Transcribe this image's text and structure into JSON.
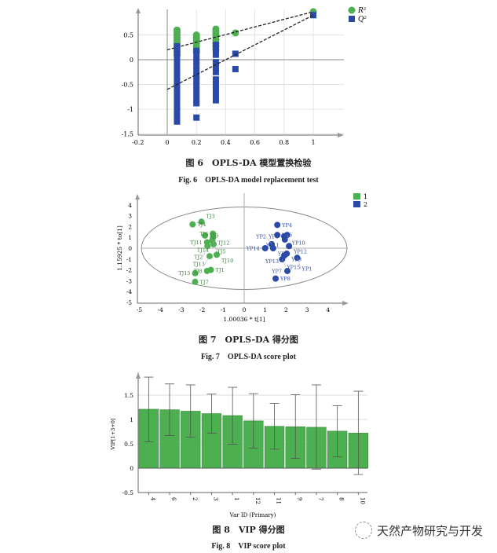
{
  "fig6": {
    "caption_cn": "图 6　OPLS-DA 模型置换检验",
    "caption_en": "Fig. 6　OPLS-DA model replacement test",
    "chart_data": {
      "type": "scatter",
      "title": "",
      "xlabel": "",
      "ylabel": "",
      "xlim": [
        -0.2,
        1.15
      ],
      "ylim": [
        -1.5,
        1.0
      ],
      "xticks": [
        "-0.2",
        "0",
        "0.2",
        "0.4",
        "0.6",
        "0.8",
        "1"
      ],
      "yticks": [
        "-1.5",
        "-1",
        "-0.5",
        "0",
        "0.5"
      ],
      "legend": [
        "R²",
        "Q²"
      ],
      "legend_position": "top-right",
      "series": [
        {
          "name": "R²",
          "color": "#4caf50",
          "marker": "circle",
          "points": [
            [
              0.067,
              0.1
            ],
            [
              0.067,
              0.15
            ],
            [
              0.067,
              0.2
            ],
            [
              0.067,
              0.25
            ],
            [
              0.067,
              0.3
            ],
            [
              0.067,
              0.35
            ],
            [
              0.067,
              0.4
            ],
            [
              0.067,
              0.45
            ],
            [
              0.067,
              0.5
            ],
            [
              0.067,
              0.55
            ],
            [
              0.067,
              0.6
            ],
            [
              0.2,
              0.15
            ],
            [
              0.2,
              0.2
            ],
            [
              0.2,
              0.27
            ],
            [
              0.2,
              0.33
            ],
            [
              0.2,
              0.4
            ],
            [
              0.2,
              0.45
            ],
            [
              0.2,
              0.5
            ],
            [
              0.333,
              0.2
            ],
            [
              0.333,
              0.27
            ],
            [
              0.333,
              0.33
            ],
            [
              0.333,
              0.4
            ],
            [
              0.333,
              0.47
            ],
            [
              0.333,
              0.52
            ],
            [
              0.333,
              0.57
            ],
            [
              0.333,
              0.62
            ],
            [
              0.467,
              0.54
            ],
            [
              1,
              0.97
            ]
          ],
          "regression": [
            [
              0,
              0.2
            ],
            [
              1,
              0.97
            ]
          ]
        },
        {
          "name": "Q²",
          "color": "#2b4aa8",
          "marker": "square",
          "points": [
            [
              0.067,
              0.27
            ],
            [
              0.067,
              0.15
            ],
            [
              0.067,
              0.05
            ],
            [
              0.067,
              -0.05
            ],
            [
              0.067,
              -0.15
            ],
            [
              0.067,
              -0.25
            ],
            [
              0.067,
              -0.35
            ],
            [
              0.067,
              -0.45
            ],
            [
              0.067,
              -0.55
            ],
            [
              0.067,
              -0.65
            ],
            [
              0.067,
              -0.75
            ],
            [
              0.067,
              -0.85
            ],
            [
              0.067,
              -0.95
            ],
            [
              0.067,
              -1.05
            ],
            [
              0.067,
              -1.15
            ],
            [
              0.067,
              -1.25
            ],
            [
              0.2,
              0.18
            ],
            [
              0.2,
              0.08
            ],
            [
              0.2,
              -0.02
            ],
            [
              0.2,
              -0.12
            ],
            [
              0.2,
              -0.22
            ],
            [
              0.2,
              -0.32
            ],
            [
              0.2,
              -0.42
            ],
            [
              0.2,
              -0.52
            ],
            [
              0.2,
              -0.62
            ],
            [
              0.2,
              -0.72
            ],
            [
              0.2,
              -0.82
            ],
            [
              0.2,
              -0.88
            ],
            [
              0.2,
              -1.17
            ],
            [
              0.333,
              0.3
            ],
            [
              0.333,
              0.2
            ],
            [
              0.333,
              0.1
            ],
            [
              0.333,
              -0.05
            ],
            [
              0.333,
              -0.15
            ],
            [
              0.333,
              -0.25
            ],
            [
              0.333,
              -0.4
            ],
            [
              0.333,
              -0.5
            ],
            [
              0.333,
              -0.6
            ],
            [
              0.333,
              -0.7
            ],
            [
              0.333,
              -0.82
            ],
            [
              0.467,
              0.12
            ],
            [
              0.467,
              -0.19
            ],
            [
              1,
              0.9
            ]
          ],
          "regression": [
            [
              0,
              -0.6
            ],
            [
              1,
              0.9
            ]
          ]
        }
      ]
    }
  },
  "fig7": {
    "caption_cn": "图 7　OPLS-DA 得分图",
    "caption_en": "Fig. 7　OPLS-DA score plot",
    "chart_data": {
      "type": "scatter",
      "xlabel": "1.00036 * t[1]",
      "ylabel": "1.15925 * to[1]",
      "xlim": [
        -5,
        4.5
      ],
      "ylim": [
        -5,
        4.5
      ],
      "xticks": [
        "-5",
        "-4",
        "-3",
        "-2",
        "-1",
        "0",
        "1",
        "2",
        "3",
        "4"
      ],
      "yticks": [
        "-5",
        "-4",
        "-3",
        "-2",
        "-1",
        "0",
        "1",
        "2",
        "3",
        "4"
      ],
      "legend": [
        "1",
        "2"
      ],
      "legend_position": "top-right",
      "ellipse": {
        "rx": 4.9,
        "ry": 3.8
      },
      "series": [
        {
          "name": "1",
          "color": "#4caf50",
          "points": [
            {
              "label": "TJ4",
              "x": -2.46,
              "y": 2.2
            },
            {
              "label": "TJ3",
              "x": -2.04,
              "y": 2.45
            },
            {
              "label": "TJ9",
              "x": -1.87,
              "y": 1.17
            },
            {
              "label": "TJ6",
              "x": -1.49,
              "y": 1.34
            },
            {
              "label": "TJ12",
              "x": -1.49,
              "y": 1.0
            },
            {
              "label": "TJ11",
              "x": -1.77,
              "y": 0.54
            },
            {
              "label": "TJ5",
              "x": -1.52,
              "y": 0.73
            },
            {
              "label": "TJ14",
              "x": -1.46,
              "y": 0.37
            },
            {
              "label": "TJ2",
              "x": -1.75,
              "y": 0.2
            },
            {
              "label": "TJ10",
              "x": -1.31,
              "y": -0.6
            },
            {
              "label": "TJ13",
              "x": -1.65,
              "y": -0.73
            },
            {
              "label": "TJ1",
              "x": -1.59,
              "y": -2.0
            },
            {
              "label": "TJ8",
              "x": -1.77,
              "y": -2.1
            },
            {
              "label": "TJ15",
              "x": -2.34,
              "y": -2.3
            },
            {
              "label": "TJ7",
              "x": -2.34,
              "y": -3.1
            }
          ]
        },
        {
          "name": "2",
          "color": "#2b4aa8",
          "points": [
            {
              "label": "YP4",
              "x": 1.58,
              "y": 2.15
            },
            {
              "label": "YP6",
              "x": 1.58,
              "y": 1.22
            },
            {
              "label": "YP3",
              "x": 1.91,
              "y": 1.1
            },
            {
              "label": "YP10",
              "x": 2.05,
              "y": 1.22
            },
            {
              "label": "YP11",
              "x": 1.94,
              "y": 0.8
            },
            {
              "label": "YP2",
              "x": 1.31,
              "y": 0.37
            },
            {
              "label": "YP14",
              "x": 1.0,
              "y": 0.0
            },
            {
              "label": "YP5",
              "x": 1.38,
              "y": 0.0
            },
            {
              "label": "YP12",
              "x": 2.14,
              "y": 0.2
            },
            {
              "label": "YP9",
              "x": 2.03,
              "y": -0.5
            },
            {
              "label": "YP13",
              "x": 1.91,
              "y": -0.68
            },
            {
              "label": "YP15",
              "x": 1.81,
              "y": -1.02
            },
            {
              "label": "YP1",
              "x": 2.53,
              "y": -0.88
            },
            {
              "label": "YP7",
              "x": 2.06,
              "y": -2.1
            },
            {
              "label": "YP8",
              "x": 1.5,
              "y": -2.8
            }
          ]
        }
      ]
    }
  },
  "fig8": {
    "caption_cn": "图 8　VIP 得分图",
    "caption_en": "Fig. 8　VIP score plot",
    "chart_data": {
      "type": "bar",
      "xlabel": "Var ID (Primary)",
      "ylabel": "VIP[1+3+0]",
      "ylim": [
        -0.5,
        1.9
      ],
      "yticks": [
        "-0.5",
        "0",
        "0.5",
        "1",
        "1.5"
      ],
      "categories": [
        "4",
        "6",
        "2",
        "3",
        "1",
        "12",
        "11",
        "9",
        "7",
        "8",
        "10"
      ],
      "values": [
        1.21,
        1.2,
        1.17,
        1.12,
        1.08,
        0.97,
        0.86,
        0.85,
        0.84,
        0.76,
        0.72
      ],
      "error_low": [
        0.54,
        0.67,
        0.64,
        0.72,
        0.49,
        0.41,
        0.39,
        0.2,
        -0.02,
        0.23,
        -0.13
      ],
      "error_high": [
        1.87,
        1.73,
        1.71,
        1.52,
        1.66,
        1.53,
        1.33,
        1.51,
        1.71,
        1.28,
        1.58
      ],
      "color": "#4caf50"
    }
  },
  "watermark": {
    "text": "天然产物研究与开发"
  }
}
